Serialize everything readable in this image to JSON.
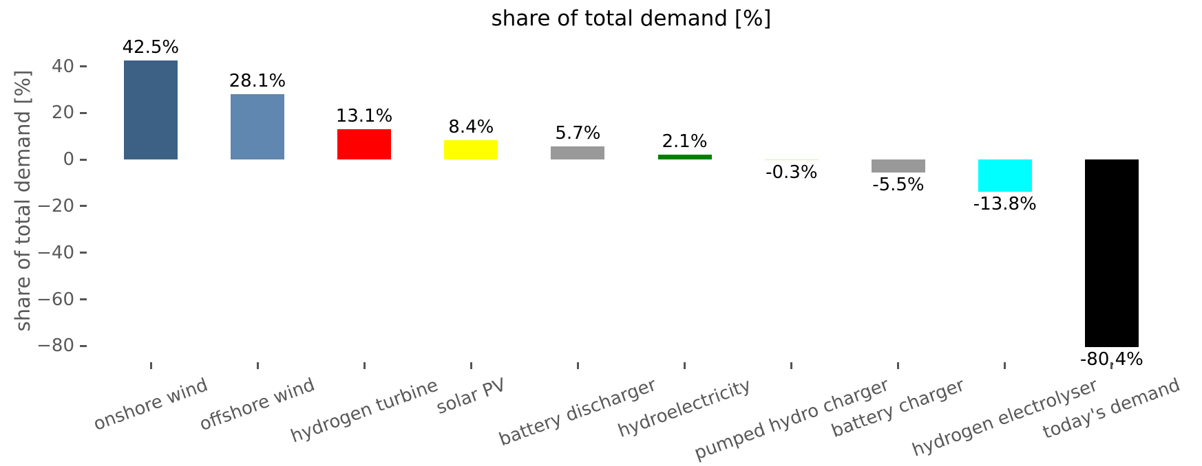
{
  "chart_data": {
    "type": "bar",
    "title": "share of total demand [%]",
    "ylabel": "share of total demand [%]",
    "xlabel": "",
    "categories": [
      "onshore wind",
      "offshore wind",
      "hydrogen turbine",
      "solar PV",
      "battery discharger",
      "hydroelectricity",
      "pumped hydro charger",
      "battery charger",
      "hydrogen electrolyser",
      "today's demand"
    ],
    "values": [
      42.5,
      28.1,
      13.1,
      8.4,
      5.7,
      2.1,
      -0.3,
      -5.5,
      -13.8,
      -80.4
    ],
    "value_labels": [
      "42.5%",
      "28.1%",
      "13.1%",
      "8.4%",
      "5.7%",
      "2.1%",
      "-0.3%",
      "-5.5%",
      "-13.8%",
      "-80.4%"
    ],
    "bar_colors": [
      "#3c6185",
      "#5f87af",
      "#ff0000",
      "#ffff00",
      "#999999",
      "#008000",
      "#d8f0a0",
      "#999999",
      "#00ffff",
      "#000000"
    ],
    "yticks": [
      40,
      20,
      0,
      -20,
      -40,
      -60,
      -80
    ],
    "ytick_labels": [
      "40",
      "20",
      "0",
      "−20",
      "−40",
      "−60",
      "−80"
    ],
    "ylim": [
      -87,
      52
    ],
    "grid": false,
    "legend": "none",
    "x_label_rotation_deg": 20,
    "axis_text_color": "#595959",
    "value_label_color": "#000000",
    "title_color": "#000000"
  }
}
